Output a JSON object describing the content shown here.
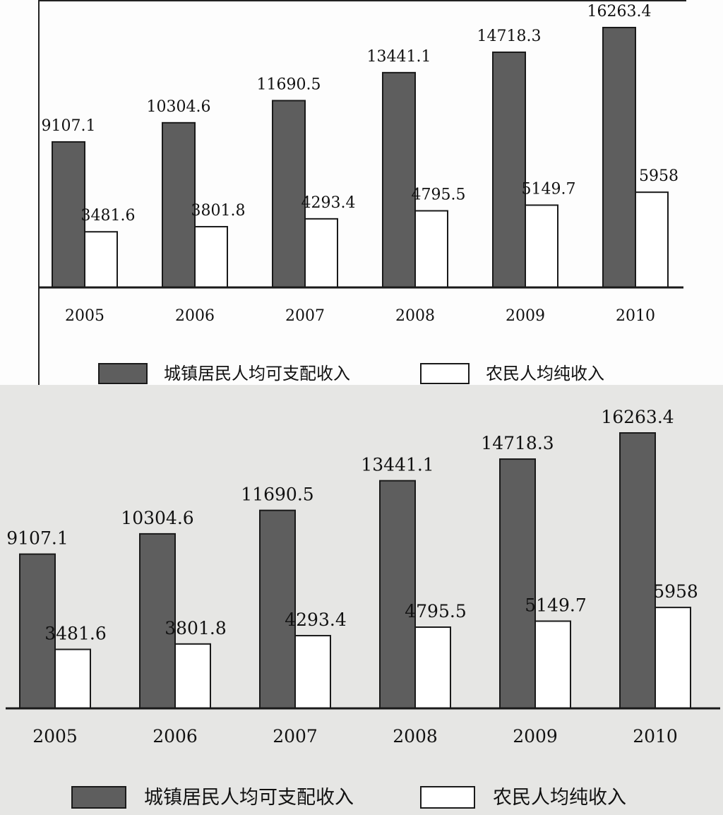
{
  "chart_data": {
    "type": "bar",
    "categories": [
      "2005",
      "2006",
      "2007",
      "2008",
      "2009",
      "2010"
    ],
    "series": [
      {
        "name": "城镇居民人均可支配收入",
        "values": [
          9107.1,
          10304.6,
          11690.5,
          13441.1,
          14718.3,
          16263.4
        ],
        "color": "#5e5e5e"
      },
      {
        "name": "农民人均纯收入",
        "values": [
          3481.6,
          3801.8,
          4293.4,
          4795.5,
          5149.7,
          5958
        ],
        "color": "#ffffff"
      }
    ],
    "value_labels": [
      [
        "9107.1",
        "10304.6",
        "11690.5",
        "13441.1",
        "14718.3",
        "16263.4"
      ],
      [
        "3481.6",
        "3801.8",
        "4293.4",
        "4795.5",
        "5149.7",
        "5958"
      ]
    ],
    "legend_position": "bottom",
    "grid": false,
    "ylim": [
      0,
      17000
    ]
  }
}
